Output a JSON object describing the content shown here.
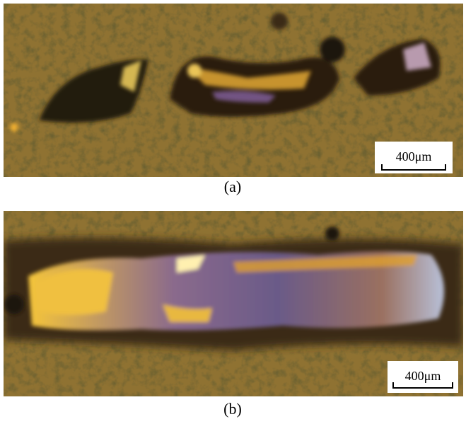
{
  "panels": [
    {
      "label": "(a)",
      "scale_bar": "400μm"
    },
    {
      "label": "(b)",
      "scale_bar": "400μm"
    }
  ]
}
